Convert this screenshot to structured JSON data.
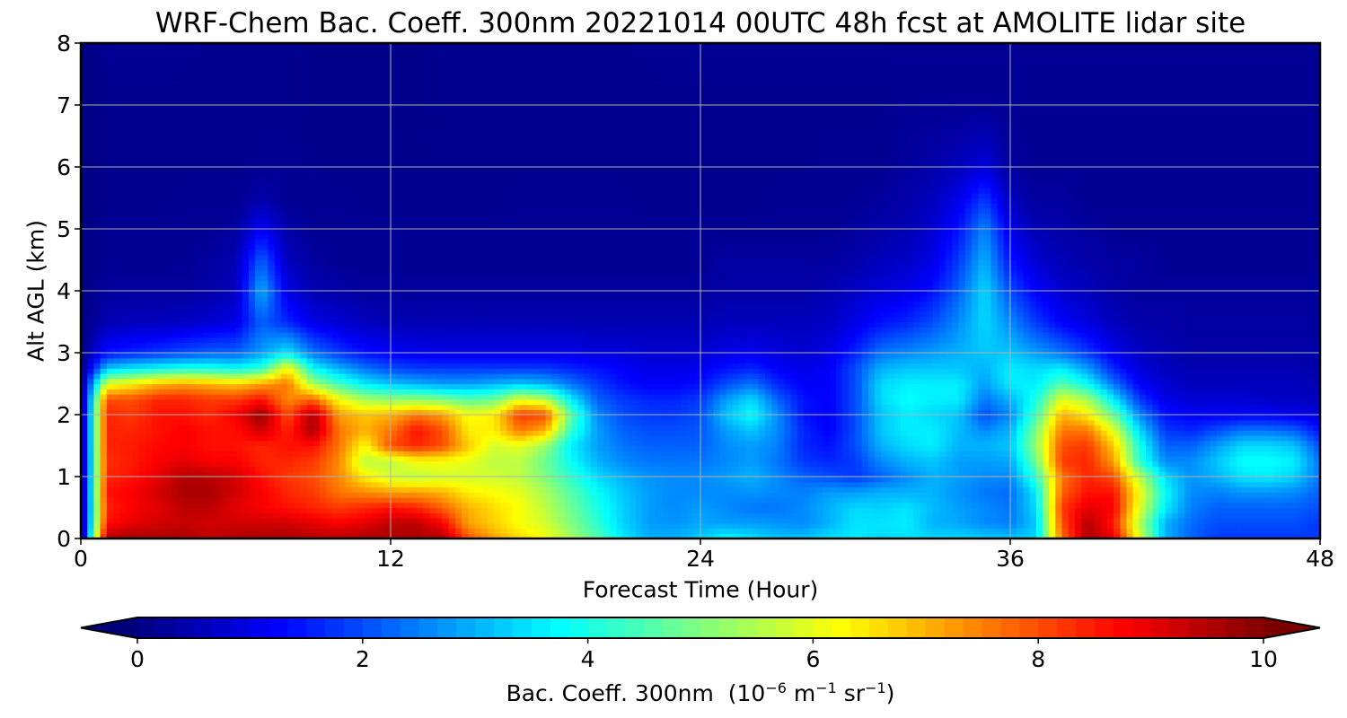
{
  "chart_data": {
    "type": "heatmap",
    "title": "WRF-Chem Bac. Coeff. 300nm  20221014 00UTC 48h fcst at AMOLITE lidar site",
    "xlabel": "Forecast Time (Hour)",
    "ylabel": "Alt AGL (km)",
    "xlim": [
      0,
      48
    ],
    "ylim": [
      0,
      8
    ],
    "xticks": [
      "0",
      "12",
      "24",
      "36",
      "48"
    ],
    "yticks": [
      "0",
      "1",
      "2",
      "3",
      "4",
      "5",
      "6",
      "7",
      "8"
    ],
    "grid": true,
    "colorbar": {
      "label_text": "Bac. Coeff. 300nm",
      "label_units_parts": [
        "10",
        "−6",
        " m",
        "−1",
        " sr",
        "−1"
      ],
      "range": [
        0,
        10
      ],
      "ticks": [
        "0",
        "2",
        "4",
        "6",
        "8",
        "10"
      ],
      "colormap": "jet",
      "extend": "both",
      "orientation": "horizontal"
    },
    "x": [
      0,
      1,
      2,
      3,
      4,
      5,
      6,
      7,
      8,
      9,
      10,
      11,
      12,
      13,
      14,
      15,
      16,
      17,
      18,
      19,
      20,
      21,
      22,
      23,
      24,
      25,
      26,
      27,
      28,
      29,
      30,
      31,
      32,
      33,
      34,
      35,
      36,
      37,
      38,
      39,
      40,
      41,
      42,
      43,
      44,
      45,
      46,
      47,
      48
    ],
    "y": [
      0,
      0.25,
      0.5,
      0.75,
      1,
      1.25,
      1.5,
      1.75,
      2,
      2.25,
      2.5,
      2.75,
      3,
      3.5,
      4,
      4.5,
      5,
      5.5,
      6,
      7,
      8
    ],
    "z": [
      [
        0,
        9.6,
        9.7,
        9.6,
        9.6,
        9.4,
        9.6,
        9.6,
        9.6,
        9.5,
        9.5,
        9.6,
        9.6,
        9.6,
        9.6,
        8,
        7.2,
        6.6,
        6.2,
        5.4,
        4.6,
        3.6,
        3.0,
        3.0,
        3.3,
        3.8,
        3.5,
        3.2,
        3.2,
        3.5,
        3.6,
        3.4,
        3.5,
        3.4,
        3.4,
        3.3,
        3.2,
        3.4,
        7.6,
        9.6,
        9,
        6,
        3,
        2.2,
        1.8,
        1.8,
        1.8,
        1.8,
        1.8
      ],
      [
        0,
        8.6,
        9,
        9.2,
        9.3,
        9.2,
        9.2,
        9.2,
        9.2,
        9,
        8.8,
        9,
        9.4,
        9.4,
        8.8,
        7.2,
        6.7,
        6.2,
        5.8,
        5.0,
        4.2,
        3.3,
        2.8,
        2.7,
        2.9,
        2.8,
        2.8,
        2.7,
        2.6,
        3.0,
        3.5,
        3.5,
        3.6,
        3.0,
        2.9,
        2.6,
        2.5,
        3.2,
        8,
        9.5,
        8.5,
        5.5,
        3,
        2.3,
        2,
        2,
        2,
        2,
        1.8
      ],
      [
        0,
        8.4,
        8.8,
        9,
        9.4,
        9.4,
        9.0,
        8.8,
        8.6,
        8.4,
        8.2,
        8.4,
        8.6,
        8.4,
        7.8,
        7.0,
        6.6,
        6.2,
        5.6,
        4.8,
        4.0,
        3.3,
        2.8,
        2.6,
        2.8,
        2.6,
        2.4,
        2.4,
        2.6,
        3.0,
        3.4,
        3.3,
        3.5,
        3.1,
        2.8,
        2.6,
        2.4,
        3.4,
        8.2,
        9,
        8.8,
        6,
        3.6,
        2.5,
        2.2,
        2.2,
        2.2,
        2.2,
        2
      ],
      [
        0,
        8.6,
        8.8,
        9.2,
        9.6,
        9.6,
        9.2,
        8.8,
        8.4,
        8.2,
        7.6,
        7.4,
        7.2,
        7.2,
        7.0,
        6.4,
        6.2,
        6.0,
        5.4,
        4.6,
        3.8,
        3.2,
        2.8,
        2.6,
        2.6,
        2.6,
        2.7,
        2.6,
        2.5,
        2.8,
        2.8,
        3.0,
        3.0,
        3.0,
        2.7,
        2.4,
        2.3,
        3.6,
        7.8,
        8.6,
        8.6,
        6.2,
        3.8,
        2.6,
        2.5,
        2.7,
        2.7,
        2.6,
        2.2
      ],
      [
        0,
        8.4,
        8.6,
        9.0,
        9.5,
        9.4,
        9.2,
        8.6,
        8.2,
        8.0,
        7.4,
        6.4,
        5.8,
        5.6,
        5.8,
        5.8,
        5.8,
        5.6,
        5.0,
        4.2,
        3.4,
        3.0,
        2.7,
        2.6,
        2.6,
        2.8,
        3.0,
        2.6,
        2.2,
        2.0,
        1.8,
        2.2,
        2.6,
        3.0,
        2.8,
        2.6,
        2.6,
        4.2,
        7.6,
        8.4,
        8.0,
        5.6,
        3.4,
        2.7,
        3.0,
        3.5,
        3.6,
        3.3,
        2.4
      ],
      [
        0,
        8.3,
        8.5,
        8.8,
        9.0,
        8.8,
        8.8,
        8.4,
        8.4,
        8.2,
        7.4,
        5.6,
        5.6,
        6.2,
        6.2,
        6.0,
        5.6,
        5.6,
        4.8,
        3.8,
        3.0,
        2.6,
        2.4,
        2.4,
        2.4,
        2.6,
        2.8,
        2.4,
        1.8,
        1.6,
        1.8,
        2.6,
        3.0,
        3.2,
        2.8,
        2.8,
        2.9,
        4.8,
        8.2,
        8.4,
        7.2,
        4.2,
        2.6,
        2.6,
        3.2,
        3.8,
        3.8,
        3.6,
        2.4
      ],
      [
        0,
        8.4,
        8.5,
        8.7,
        8.8,
        8.6,
        8.6,
        8.4,
        8.6,
        8.6,
        7.6,
        6.2,
        8.0,
        8.4,
        8.0,
        6.8,
        5.8,
        6.0,
        5.2,
        3.6,
        2.8,
        2.4,
        2.2,
        2.2,
        2.2,
        2.6,
        2.8,
        2.5,
        1.6,
        1.4,
        2.0,
        3.0,
        3.4,
        3.6,
        3.0,
        3.0,
        3.2,
        5.2,
        8.0,
        8.2,
        6.8,
        4.0,
        2.2,
        2.2,
        2.8,
        3.4,
        3.4,
        3.2,
        2.0
      ],
      [
        0,
        8.4,
        8.4,
        8.6,
        8.8,
        8.6,
        8.6,
        9.2,
        8.4,
        9.6,
        7.6,
        7.0,
        7.6,
        8.6,
        8.0,
        6.4,
        6.4,
        7.6,
        7.0,
        4.2,
        2.8,
        2.2,
        2.0,
        2.0,
        2.1,
        2.8,
        3.2,
        2.6,
        1.6,
        1.2,
        2.0,
        3.2,
        3.6,
        3.6,
        3.1,
        2.6,
        3.0,
        5.0,
        7.6,
        7.6,
        6.0,
        3.4,
        1.8,
        1.6,
        2.0,
        2.4,
        2.4,
        2.2,
        1.4
      ],
      [
        0,
        8.4,
        8.2,
        8.6,
        8.6,
        8.4,
        8.8,
        9.8,
        8.0,
        9.6,
        7.2,
        6.8,
        7.0,
        7.6,
        7.2,
        6.2,
        6.4,
        8.2,
        8.0,
        4.6,
        2.6,
        2.0,
        1.8,
        1.8,
        2.0,
        3.2,
        3.8,
        2.6,
        1.4,
        1.2,
        2.0,
        3.2,
        3.6,
        3.4,
        3.2,
        2.0,
        2.6,
        4.4,
        7.0,
        6.4,
        4.8,
        2.6,
        1.4,
        1.2,
        1.2,
        1.2,
        1.2,
        1.1,
        0.9
      ],
      [
        0,
        8.0,
        8.0,
        8.4,
        8.4,
        8.2,
        8.2,
        8.6,
        7.4,
        7.8,
        6.2,
        5.4,
        5.2,
        5.2,
        5.0,
        4.6,
        4.8,
        6.0,
        5.6,
        3.6,
        2.2,
        1.8,
        1.6,
        1.6,
        1.8,
        2.8,
        3.4,
        2.2,
        1.4,
        1.2,
        2.0,
        3.4,
        3.8,
        3.6,
        3.6,
        2.4,
        3.0,
        4.0,
        6.0,
        5.4,
        3.6,
        1.8,
        1.0,
        0.8,
        0.8,
        0.8,
        0.7,
        0.7,
        0.6
      ],
      [
        0,
        6.0,
        6.4,
        7.0,
        7.2,
        7.0,
        6.8,
        7.2,
        7.6,
        5.4,
        4.4,
        3.6,
        3.2,
        3.0,
        2.8,
        2.8,
        3.0,
        3.2,
        3.0,
        2.4,
        1.8,
        1.4,
        1.2,
        1.2,
        1.4,
        2.0,
        2.4,
        1.6,
        1.2,
        1.2,
        2.0,
        3.4,
        3.6,
        3.6,
        3.6,
        2.8,
        3.6,
        3.6,
        4.6,
        3.8,
        2.4,
        1.2,
        0.8,
        0.6,
        0.6,
        0.6,
        0.6,
        0.6,
        0.5
      ],
      [
        0,
        3.2,
        3.6,
        3.8,
        4.0,
        4.0,
        3.8,
        4.2,
        6.4,
        3.8,
        3.0,
        2.4,
        2.0,
        1.8,
        1.8,
        1.8,
        1.8,
        1.8,
        1.8,
        1.6,
        1.4,
        1.2,
        1.0,
        1.0,
        1.1,
        1.4,
        1.6,
        1.2,
        1.0,
        1.2,
        2.0,
        3.0,
        3.2,
        3.2,
        3.2,
        3.0,
        3.6,
        3.4,
        3.6,
        2.8,
        1.6,
        0.9,
        0.6,
        0.5,
        0.5,
        0.5,
        0.5,
        0.5,
        0.4
      ],
      [
        0,
        1.4,
        1.6,
        1.8,
        2.0,
        2.2,
        2.2,
        2.8,
        3.6,
        2.4,
        1.8,
        1.4,
        1.2,
        1.1,
        1.0,
        1.0,
        1.0,
        1.0,
        1.0,
        1.0,
        0.9,
        0.9,
        0.8,
        0.8,
        0.8,
        1.0,
        1.1,
        0.9,
        0.8,
        1.0,
        1.6,
        2.4,
        2.6,
        2.8,
        3.0,
        3.2,
        3.2,
        2.8,
        2.4,
        1.8,
        1.1,
        0.7,
        0.5,
        0.4,
        0.4,
        0.4,
        0.4,
        0.4,
        0.4
      ],
      [
        0,
        0.5,
        0.6,
        0.6,
        0.7,
        0.8,
        1.0,
        2.2,
        1.6,
        1.0,
        0.8,
        0.6,
        0.5,
        0.5,
        0.5,
        0.5,
        0.5,
        0.5,
        0.5,
        0.5,
        0.5,
        0.5,
        0.5,
        0.5,
        0.5,
        0.6,
        0.6,
        0.6,
        0.6,
        0.7,
        1.0,
        1.4,
        1.6,
        2.0,
        2.6,
        3.4,
        2.6,
        1.8,
        1.2,
        0.9,
        0.6,
        0.4,
        0.4,
        0.3,
        0.3,
        0.3,
        0.3,
        0.3,
        0.3
      ],
      [
        0,
        0.3,
        0.3,
        0.3,
        0.3,
        0.4,
        0.6,
        3.0,
        1.0,
        0.5,
        0.4,
        0.3,
        0.3,
        0.3,
        0.3,
        0.3,
        0.3,
        0.3,
        0.3,
        0.3,
        0.3,
        0.3,
        0.3,
        0.3,
        0.3,
        0.4,
        0.4,
        0.4,
        0.4,
        0.5,
        0.7,
        0.9,
        1.0,
        1.4,
        2.2,
        3.4,
        2.0,
        1.2,
        0.8,
        0.6,
        0.4,
        0.3,
        0.3,
        0.3,
        0.3,
        0.3,
        0.3,
        0.3,
        0.3
      ],
      [
        0,
        0.2,
        0.2,
        0.2,
        0.2,
        0.3,
        0.5,
        2.2,
        0.6,
        0.3,
        0.2,
        0.2,
        0.2,
        0.2,
        0.2,
        0.2,
        0.2,
        0.2,
        0.2,
        0.2,
        0.2,
        0.2,
        0.2,
        0.2,
        0.2,
        0.3,
        0.3,
        0.3,
        0.3,
        0.3,
        0.4,
        0.6,
        0.7,
        1.0,
        1.8,
        3.0,
        1.4,
        0.8,
        0.5,
        0.4,
        0.3,
        0.3,
        0.2,
        0.2,
        0.2,
        0.2,
        0.2,
        0.2,
        0.2
      ],
      [
        0,
        0.2,
        0.2,
        0.2,
        0.2,
        0.2,
        0.3,
        1.2,
        0.4,
        0.2,
        0.2,
        0.2,
        0.2,
        0.2,
        0.2,
        0.2,
        0.2,
        0.2,
        0.2,
        0.2,
        0.2,
        0.2,
        0.2,
        0.2,
        0.2,
        0.2,
        0.2,
        0.2,
        0.2,
        0.2,
        0.3,
        0.4,
        0.5,
        0.8,
        1.4,
        2.6,
        1.0,
        0.5,
        0.4,
        0.3,
        0.2,
        0.2,
        0.2,
        0.2,
        0.2,
        0.2,
        0.2,
        0.2,
        0.2
      ],
      [
        0,
        0.15,
        0.15,
        0.15,
        0.2,
        0.2,
        0.2,
        0.4,
        0.2,
        0.2,
        0.2,
        0.15,
        0.15,
        0.15,
        0.15,
        0.15,
        0.15,
        0.2,
        0.2,
        0.2,
        0.2,
        0.2,
        0.15,
        0.15,
        0.15,
        0.15,
        0.15,
        0.2,
        0.2,
        0.2,
        0.2,
        0.3,
        0.4,
        0.6,
        1.0,
        1.8,
        0.6,
        0.3,
        0.3,
        0.2,
        0.2,
        0.2,
        0.2,
        0.2,
        0.2,
        0.2,
        0.2,
        0.2,
        0.2
      ],
      [
        0,
        0.15,
        0.15,
        0.15,
        0.15,
        0.15,
        0.15,
        0.2,
        0.2,
        0.15,
        0.15,
        0.15,
        0.15,
        0.15,
        0.15,
        0.15,
        0.15,
        0.15,
        0.15,
        0.15,
        0.15,
        0.15,
        0.15,
        0.15,
        0.15,
        0.15,
        0.15,
        0.15,
        0.15,
        0.2,
        0.2,
        0.2,
        0.3,
        0.4,
        0.6,
        0.9,
        0.3,
        0.2,
        0.2,
        0.2,
        0.2,
        0.2,
        0.2,
        0.2,
        0.2,
        0.2,
        0.2,
        0.2,
        0.2
      ],
      [
        0,
        0.15,
        0.15,
        0.15,
        0.15,
        0.15,
        0.15,
        0.15,
        0.15,
        0.1,
        0.1,
        0.1,
        0.1,
        0.1,
        0.15,
        0.15,
        0.15,
        0.15,
        0.15,
        0.15,
        0.15,
        0.15,
        0.15,
        0.15,
        0.15,
        0.15,
        0.15,
        0.15,
        0.15,
        0.15,
        0.15,
        0.15,
        0.2,
        0.2,
        0.2,
        0.2,
        0.2,
        0.2,
        0.2,
        0.2,
        0.2,
        0.2,
        0.2,
        0.2,
        0.2,
        0.2,
        0.2,
        0.2,
        0.2
      ],
      [
        0,
        0.2,
        0.2,
        0.2,
        0.2,
        0.15,
        0.15,
        0.15,
        0.15,
        0.1,
        0.1,
        0.1,
        0.1,
        0.1,
        0.15,
        0.15,
        0.15,
        0.15,
        0.15,
        0.15,
        0.15,
        0.15,
        0.2,
        0.2,
        0.2,
        0.2,
        0.2,
        0.2,
        0.2,
        0.2,
        0.2,
        0.2,
        0.2,
        0.2,
        0.2,
        0.2,
        0.2,
        0.2,
        0.2,
        0.2,
        0.2,
        0.2,
        0.2,
        0.2,
        0.2,
        0.2,
        0.2,
        0.2,
        0.2
      ]
    ]
  }
}
